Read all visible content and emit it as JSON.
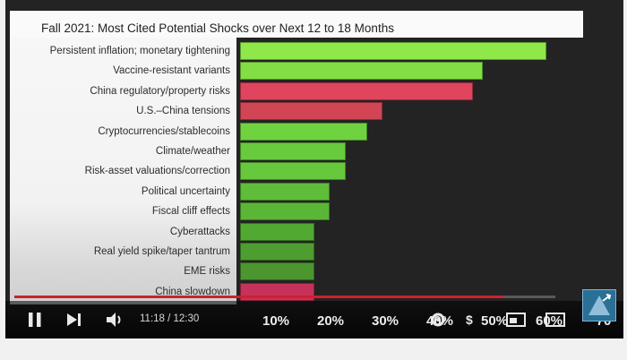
{
  "chart_data": {
    "type": "bar",
    "orientation": "horizontal",
    "title": "Fall 2021: Most Cited Potential Shocks over Next 12 to 18 Months",
    "categories": [
      "Persistent inflation; monetary tightening",
      "Vaccine-resistant variants",
      "China regulatory/property risks",
      "U.S.–China tensions",
      "Cryptocurrencies/stablecoins",
      "Climate/weather",
      "Risk-asset valuations/correction",
      "Political uncertainty",
      "Fiscal cliff effects",
      "Cyberattacks",
      "Real yield spike/taper tantrum",
      "EME risks",
      "China slowdown"
    ],
    "values": [
      58,
      46,
      44,
      27,
      24,
      20,
      20,
      17,
      17,
      14,
      14,
      14,
      14
    ],
    "colors": [
      "#8ee84a",
      "#82de44",
      "#e0455d",
      "#d24555",
      "#6fd23f",
      "#68cb3d",
      "#67c83d",
      "#5fbd39",
      "#5ab637",
      "#52a932",
      "#4e9d30",
      "#4c962f",
      "#c7325a"
    ],
    "tick_labels": [
      "10%",
      "20%",
      "30%",
      "40%",
      "50%",
      "60%",
      "70"
    ],
    "xlim": [
      0,
      70
    ]
  },
  "player": {
    "current_time": "11:18",
    "duration": "12:30",
    "time_display": "11:18 / 12:30",
    "progress": 0.904,
    "icons": [
      "pause-icon",
      "next-icon",
      "volume-icon",
      "settings-icon",
      "subtitles-icon",
      "miniplayer-icon",
      "theater-icon",
      "fullscreen-icon"
    ],
    "accent_color": "#d01f2f"
  }
}
